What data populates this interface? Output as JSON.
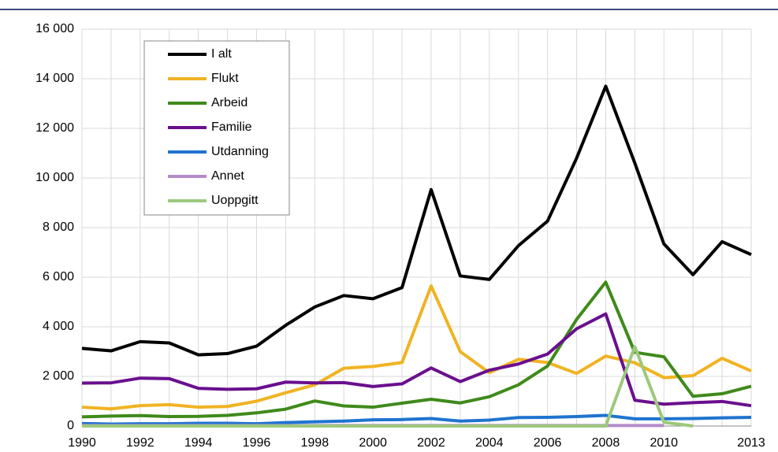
{
  "chart_data": {
    "type": "line",
    "x": [
      1990,
      1991,
      1992,
      1993,
      1994,
      1995,
      1996,
      1997,
      1998,
      1999,
      2000,
      2001,
      2002,
      2003,
      2004,
      2005,
      2006,
      2007,
      2008,
      2009,
      2010,
      2011,
      2012,
      2013
    ],
    "series": [
      {
        "name": "I alt",
        "color": "#000000",
        "values": [
          3130,
          3030,
          3400,
          3350,
          2870,
          2920,
          3220,
          4060,
          4800,
          5260,
          5130,
          5580,
          9530,
          6050,
          5910,
          7270,
          8260,
          10800,
          13700,
          10600,
          7340,
          6100,
          7430,
          6910
        ]
      },
      {
        "name": "Flukt",
        "color": "#f0b323",
        "values": [
          760,
          690,
          820,
          860,
          760,
          790,
          1000,
          1340,
          1660,
          2330,
          2400,
          2560,
          5650,
          3000,
          2150,
          2690,
          2560,
          2120,
          2820,
          2550,
          1950,
          2030,
          2730,
          2220
        ]
      },
      {
        "name": "Arbeid",
        "color": "#3f8a1b",
        "values": [
          370,
          400,
          420,
          380,
          390,
          430,
          530,
          680,
          1010,
          810,
          760,
          920,
          1080,
          930,
          1180,
          1660,
          2420,
          4300,
          5800,
          2970,
          2790,
          1200,
          1300,
          1600
        ]
      },
      {
        "name": "Familie",
        "color": "#6a0f8e",
        "values": [
          1730,
          1740,
          1930,
          1910,
          1520,
          1480,
          1500,
          1770,
          1740,
          1750,
          1590,
          1700,
          2340,
          1790,
          2250,
          2500,
          2900,
          3920,
          4520,
          1040,
          880,
          940,
          990,
          820
        ]
      },
      {
        "name": "Utdanning",
        "color": "#1f74cf",
        "values": [
          100,
          80,
          90,
          90,
          110,
          110,
          90,
          140,
          170,
          200,
          250,
          260,
          300,
          200,
          240,
          340,
          350,
          380,
          430,
          290,
          290,
          300,
          330,
          350
        ]
      },
      {
        "name": "Annet",
        "color": "#b48cc8",
        "values": [
          20,
          20,
          20,
          20,
          20,
          20,
          20,
          20,
          20,
          20,
          20,
          20,
          20,
          20,
          20,
          20,
          20,
          20,
          20,
          20,
          20,
          null,
          null,
          null
        ]
      },
      {
        "name": "Uoppgitt",
        "color": "#9cc97c",
        "values": [
          0,
          0,
          0,
          0,
          0,
          0,
          0,
          0,
          0,
          0,
          0,
          0,
          0,
          0,
          0,
          0,
          0,
          0,
          0,
          3200,
          150,
          0,
          null,
          null
        ]
      }
    ],
    "xlim": [
      1990,
      2013
    ],
    "xticks": [
      1990,
      1992,
      1994,
      1996,
      1998,
      2000,
      2002,
      2004,
      2006,
      2008,
      2010,
      2013
    ],
    "ylim": [
      0,
      16000
    ],
    "yticks": [
      0,
      {
        "value": 2000,
        "label": "2 000"
      },
      {
        "value": 4000,
        "label": "4 000"
      },
      {
        "value": 6000,
        "label": "6 000"
      },
      {
        "value": 8000,
        "label": "8 000"
      },
      {
        "value": 10000,
        "label": "10 000"
      },
      {
        "value": 12000,
        "label": "12 000"
      },
      {
        "value": 14000,
        "label": "14 000"
      },
      {
        "value": 16000,
        "label": "16 000"
      }
    ],
    "grid": true,
    "legend": "upper left"
  }
}
